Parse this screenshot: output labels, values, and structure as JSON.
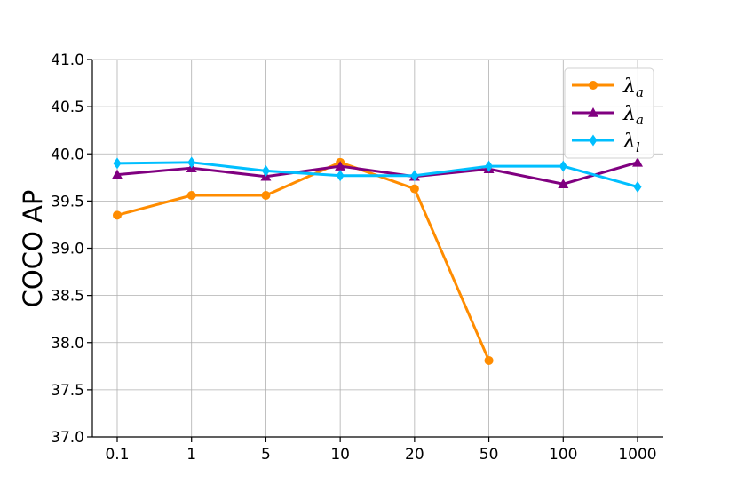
{
  "chart_data": {
    "type": "line",
    "categories": [
      "0.1",
      "1",
      "5",
      "10",
      "20",
      "50",
      "100",
      "1000"
    ],
    "ylabel": "COCO AP",
    "xlabel": "",
    "ylim": [
      37.0,
      41.0
    ],
    "yticks": [
      "37.0",
      "37.5",
      "38.0",
      "38.5",
      "39.0",
      "39.5",
      "40.0",
      "40.5",
      "41.0"
    ],
    "grid": true,
    "legend_position": "top-right",
    "series": [
      {
        "name": "λ",
        "sub": "a",
        "color": "#ff8c00",
        "marker": "circle",
        "values": [
          39.35,
          39.56,
          39.56,
          39.91,
          39.63,
          37.81,
          null,
          null
        ]
      },
      {
        "name": "λ",
        "sub": "a",
        "color": "#800080",
        "marker": "triangle",
        "values": [
          39.78,
          39.85,
          39.76,
          39.87,
          39.76,
          39.84,
          39.68,
          39.91
        ]
      },
      {
        "name": "λ",
        "sub": "l",
        "color": "#00bfff",
        "marker": "diamond",
        "values": [
          39.9,
          39.91,
          39.82,
          39.77,
          39.77,
          39.87,
          39.87,
          39.65
        ]
      }
    ]
  }
}
